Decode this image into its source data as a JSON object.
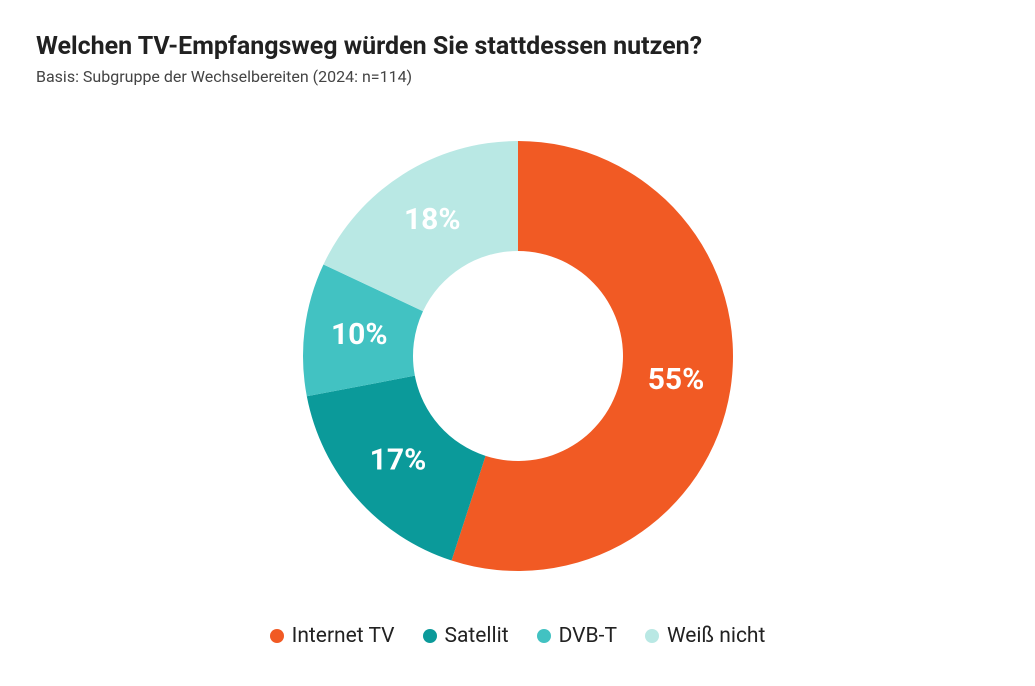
{
  "title": "Welchen TV-Empfangsweg würden Sie stattdessen nutzen?",
  "subtitle": "Basis: Subgruppe der Wechselbereiten (2024: n=114)",
  "chart": {
    "type": "donut",
    "background_color": "#ffffff",
    "outer_radius": 215,
    "inner_radius": 105,
    "label_radius": 160,
    "label_fontsize": 30,
    "label_fontweight": 700,
    "label_color": "#ffffff",
    "slices": [
      {
        "label": "Internet TV",
        "value": 55,
        "display": "55%",
        "color": "#f15a24"
      },
      {
        "label": "Satellit",
        "value": 17,
        "display": "17%",
        "color": "#0b9a9a"
      },
      {
        "label": "DVB-T",
        "value": 10,
        "display": "10%",
        "color": "#42c2c2"
      },
      {
        "label": "Weiß nicht",
        "value": 18,
        "display": "18%",
        "color": "#b9e8e4"
      }
    ]
  },
  "legend": {
    "fontsize": 21,
    "items": [
      {
        "label": "Internet TV",
        "color": "#f15a24"
      },
      {
        "label": "Satellit",
        "color": "#0b9a9a"
      },
      {
        "label": "DVB-T",
        "color": "#42c2c2"
      },
      {
        "label": "Weiß nicht",
        "color": "#b9e8e4"
      }
    ]
  }
}
